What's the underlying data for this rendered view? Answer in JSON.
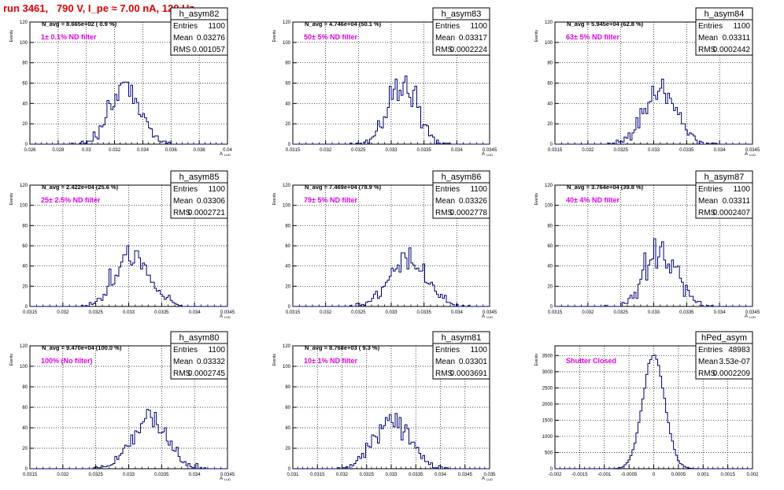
{
  "run_title": "run 3461,   790 V, I_pe ≈ 7.00 nA, 120 Hz",
  "chart_data": [
    {
      "type": "histogram",
      "name": "h_asym82",
      "navg": "N_avg = 8.665e+02 ( 0.9 %)",
      "filter": "1± 0.1% ND filter",
      "stats": {
        "entries_label": "Entries",
        "entries": "1100",
        "mean_label": "Mean",
        "mean": "0.03276",
        "rms_label": "RMS",
        "rms": "0.001057"
      },
      "ylabel": "Events",
      "xlabel": "A",
      "xlabel_sub": "LUD",
      "ylim": [
        0,
        120
      ],
      "xlim": [
        0.026,
        0.04
      ],
      "yticks": [
        "0",
        "20",
        "40",
        "60",
        "80",
        "100",
        "120"
      ],
      "xticks": [
        "0.026",
        "0.028",
        "0.03",
        "0.032",
        "0.034",
        "0.036",
        "0.038",
        "0.04"
      ],
      "grid": true,
      "mean_value": 0.03276,
      "rms_value": 0.001057,
      "entries_value": 1100,
      "nbins": 100
    },
    {
      "type": "histogram",
      "name": "h_asym83",
      "navg": "N_avg = 4.746e+04 (50.1 %)",
      "filter": "50± 5% ND filter",
      "stats": {
        "entries_label": "Entries",
        "entries": "1100",
        "mean_label": "Mean",
        "mean": "0.03317",
        "rms_label": "RMS",
        "rms": "0.0002224"
      },
      "ylabel": "Events",
      "xlabel": "A",
      "xlabel_sub": "LUD",
      "ylim": [
        0,
        120
      ],
      "xlim": [
        0.0315,
        0.0345
      ],
      "yticks": [
        "0",
        "20",
        "40",
        "60",
        "80",
        "100",
        "120"
      ],
      "xticks": [
        "0.0315",
        "0.032",
        "0.0325",
        "0.033",
        "0.0335",
        "0.034",
        "0.0345"
      ],
      "grid": true,
      "mean_value": 0.03317,
      "rms_value": 0.0002224,
      "entries_value": 1100,
      "nbins": 100
    },
    {
      "type": "histogram",
      "name": "h_asym84",
      "navg": "N_avg = 5.945e+04 (62.8 %)",
      "filter": "63± 5% ND filter",
      "stats": {
        "entries_label": "Entries",
        "entries": "1100",
        "mean_label": "Mean",
        "mean": "0.03311",
        "rms_label": "RMS",
        "rms": "0.0002442"
      },
      "ylabel": "Events",
      "xlabel": "A",
      "xlabel_sub": "LUD",
      "ylim": [
        0,
        120
      ],
      "xlim": [
        0.0315,
        0.0345
      ],
      "yticks": [
        "0",
        "20",
        "40",
        "60",
        "80",
        "100",
        "120"
      ],
      "xticks": [
        "0.0315",
        "0.032",
        "0.0325",
        "0.033",
        "0.0335",
        "0.034",
        "0.0345"
      ],
      "grid": true,
      "mean_value": 0.03311,
      "rms_value": 0.0002442,
      "entries_value": 1100,
      "nbins": 100
    },
    {
      "type": "histogram",
      "name": "h_asym85",
      "navg": "N_avg = 2.422e+04 (25.6 %)",
      "filter": "25± 2.5% ND filter",
      "stats": {
        "entries_label": "Entries",
        "entries": "1100",
        "mean_label": "Mean",
        "mean": "0.03306",
        "rms_label": "RMS",
        "rms": "0.0002721"
      },
      "ylabel": "Events",
      "xlabel": "A",
      "xlabel_sub": "LUD",
      "ylim": [
        0,
        120
      ],
      "xlim": [
        0.0315,
        0.0345
      ],
      "yticks": [
        "0",
        "20",
        "40",
        "60",
        "80",
        "100",
        "120"
      ],
      "xticks": [
        "0.0315",
        "0.032",
        "0.0325",
        "0.033",
        "0.0335",
        "0.034",
        "0.0345"
      ],
      "grid": true,
      "mean_value": 0.03306,
      "rms_value": 0.0002721,
      "entries_value": 1100,
      "nbins": 100
    },
    {
      "type": "histogram",
      "name": "h_asym86",
      "navg": "N_avg = 7.469e+04 (78.9 %)",
      "filter": "79± 5% ND filter",
      "stats": {
        "entries_label": "Entries",
        "entries": "1100",
        "mean_label": "Mean",
        "mean": "0.03326",
        "rms_label": "RMS",
        "rms": "0.0002778"
      },
      "ylabel": "Events",
      "xlabel": "A",
      "xlabel_sub": "LUD",
      "ylim": [
        0,
        120
      ],
      "xlim": [
        0.0315,
        0.0345
      ],
      "yticks": [
        "0",
        "20",
        "40",
        "60",
        "80",
        "100",
        "120"
      ],
      "xticks": [
        "0.0315",
        "0.032",
        "0.0325",
        "0.033",
        "0.0335",
        "0.034",
        "0.0345"
      ],
      "grid": true,
      "mean_value": 0.03326,
      "rms_value": 0.0002778,
      "entries_value": 1100,
      "nbins": 100
    },
    {
      "type": "histogram",
      "name": "h_asym87",
      "navg": "N_avg = 3.764e+04 (39.8 %)",
      "filter": "40± 4% ND filter",
      "stats": {
        "entries_label": "Entries",
        "entries": "1100",
        "mean_label": "Mean",
        "mean": "0.03311",
        "rms_label": "RMS",
        "rms": "0.0002407"
      },
      "ylabel": "Events",
      "xlabel": "A",
      "xlabel_sub": "LUD",
      "ylim": [
        0,
        120
      ],
      "xlim": [
        0.0315,
        0.0345
      ],
      "yticks": [
        "0",
        "20",
        "40",
        "60",
        "80",
        "100",
        "120"
      ],
      "xticks": [
        "0.0315",
        "0.032",
        "0.0325",
        "0.033",
        "0.0335",
        "0.034",
        "0.0345"
      ],
      "grid": true,
      "mean_value": 0.03311,
      "rms_value": 0.0002407,
      "entries_value": 1100,
      "nbins": 100
    },
    {
      "type": "histogram",
      "name": "h_asym80",
      "navg": "N_avg = 9.470e+04 (100.0 %)",
      "filter": "100% (No filter)",
      "stats": {
        "entries_label": "Entries",
        "entries": "1100",
        "mean_label": "Mean",
        "mean": "0.03332",
        "rms_label": "RMS",
        "rms": "0.0002745"
      },
      "ylabel": "Events",
      "xlabel": "A",
      "xlabel_sub": "LUD",
      "ylim": [
        0,
        120
      ],
      "xlim": [
        0.0315,
        0.0345
      ],
      "yticks": [
        "0",
        "20",
        "40",
        "60",
        "80",
        "100",
        "120"
      ],
      "xticks": [
        "0.0315",
        "0.032",
        "0.0325",
        "0.033",
        "0.0335",
        "0.034",
        "0.0345"
      ],
      "grid": true,
      "mean_value": 0.03332,
      "rms_value": 0.0002745,
      "entries_value": 1100,
      "nbins": 100
    },
    {
      "type": "histogram",
      "name": "h_asym81",
      "navg": "N_avg = 8.768e+03 ( 9.3 %)",
      "filter": "10± 1% ND filter",
      "stats": {
        "entries_label": "Entries",
        "entries": "1100",
        "mean_label": "Mean",
        "mean": "0.03301",
        "rms_label": "RMS",
        "rms": "0.0003691"
      },
      "ylabel": "Events",
      "xlabel": "A",
      "xlabel_sub": "LUD",
      "ylim": [
        0,
        120
      ],
      "xlim": [
        0.031,
        0.035
      ],
      "yticks": [
        "0",
        "20",
        "40",
        "60",
        "80",
        "100",
        "120"
      ],
      "xticks": [
        "0.031",
        "0.0315",
        "0.032",
        "0.0325",
        "0.033",
        "0.0335",
        "0.034",
        "0.0345",
        "0.035"
      ],
      "grid": true,
      "mean_value": 0.03301,
      "rms_value": 0.0003691,
      "entries_value": 1100,
      "nbins": 100
    },
    {
      "type": "histogram",
      "name": "hPed_asym",
      "navg": "",
      "filter": "Shutter Closed",
      "stats": {
        "entries_label": "Entries",
        "entries": "48983",
        "mean_label": "Mean",
        "mean": "3.53e-07",
        "rms_label": "RMS",
        "rms": "0.0002209"
      },
      "ylabel": "Events",
      "xlabel": "",
      "xlabel_sub": "",
      "ylim": [
        0,
        3800
      ],
      "xlim": [
        -0.002,
        0.002
      ],
      "yticks": [
        "0",
        "500",
        "1000",
        "1500",
        "2000",
        "2500",
        "3000",
        "3500"
      ],
      "xticks": [
        "-0.002",
        "-0.0015",
        "-0.001",
        "-0.0005",
        "0",
        "0.0005",
        "0.001",
        "0.0015",
        "0.002"
      ],
      "grid": true,
      "mean_value": 3.53e-07,
      "rms_value": 0.0002209,
      "entries_value": 48983,
      "nbins": 100
    }
  ],
  "colors": {
    "title": "#e00000",
    "filter": "#e000e0",
    "hist": "#000080",
    "grid": "#000000",
    "frame": "#000000"
  }
}
